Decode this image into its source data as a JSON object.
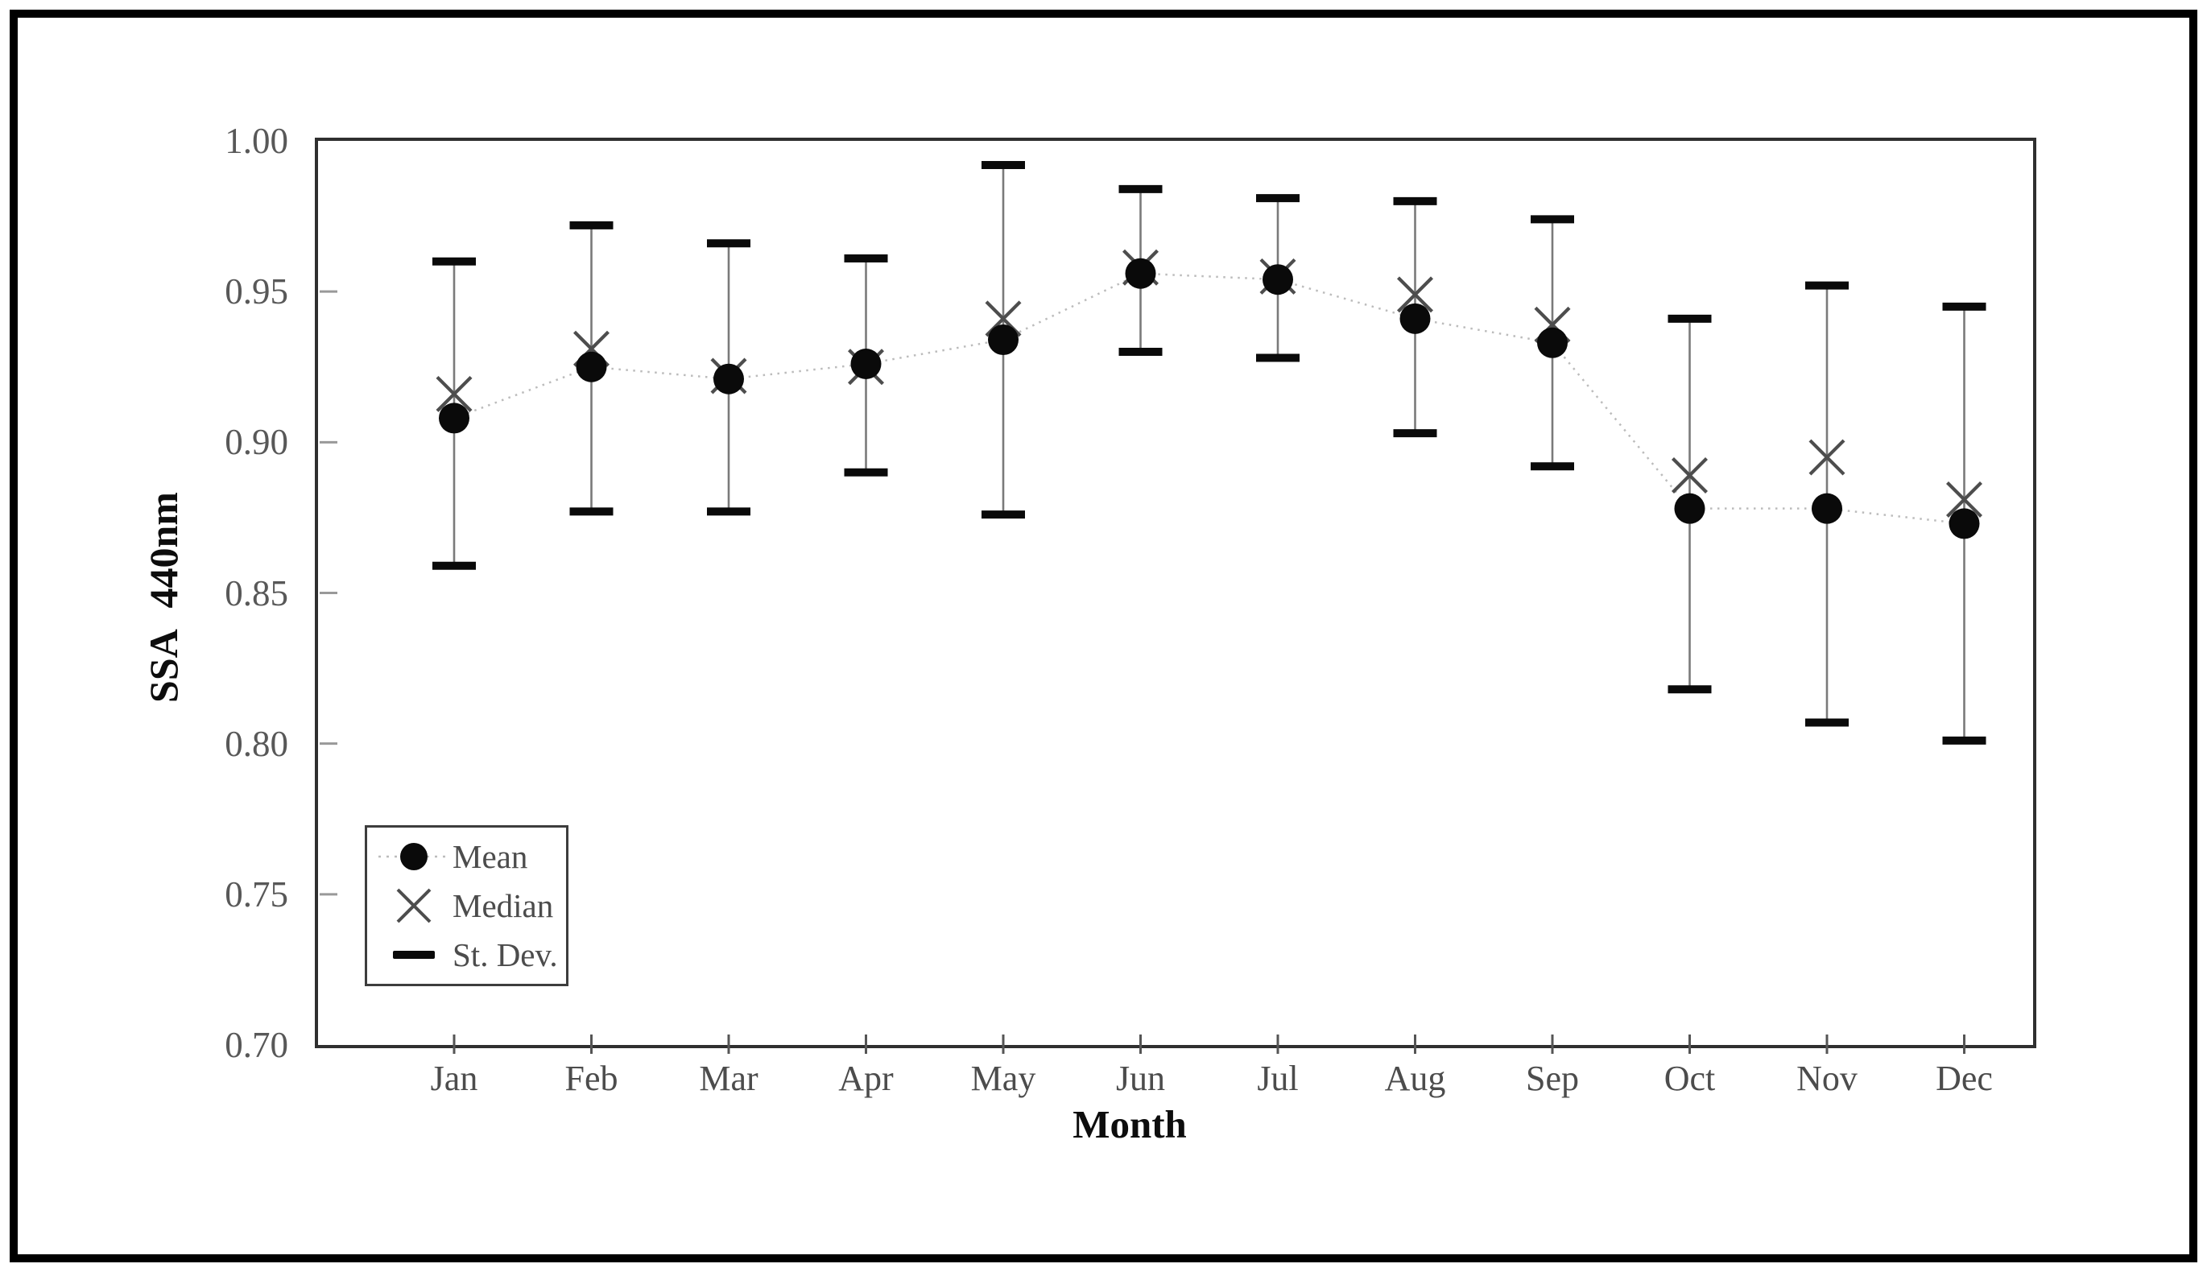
{
  "chart_data": {
    "type": "line",
    "title": "",
    "xlabel": "Month",
    "ylabel": "SSA 440nm",
    "categories": [
      "Jan",
      "Feb",
      "Mar",
      "Apr",
      "May",
      "Jun",
      "Jul",
      "Aug",
      "Sep",
      "Oct",
      "Nov",
      "Dec"
    ],
    "ylim": [
      0.7,
      1.0
    ],
    "ytick_step": 0.05,
    "yticks": [
      1.0,
      0.95,
      0.9,
      0.85,
      0.8,
      0.75,
      0.7
    ],
    "ytick_labels": [
      "1.00",
      "0.95",
      "0.90",
      "0.85",
      "0.80",
      "0.75",
      "0.70"
    ],
    "grid": false,
    "legend_position": "lower-left",
    "series": [
      {
        "name": "Mean",
        "marker": "filled-circle",
        "line": "dotted",
        "values": [
          0.908,
          0.925,
          0.921,
          0.926,
          0.934,
          0.956,
          0.954,
          0.941,
          0.933,
          0.878,
          0.878,
          0.873
        ]
      },
      {
        "name": "Median",
        "marker": "x",
        "line": "none",
        "values": [
          0.916,
          0.931,
          0.922,
          0.925,
          0.941,
          0.958,
          0.955,
          0.949,
          0.939,
          0.889,
          0.895,
          0.881
        ]
      },
      {
        "name": "St. Dev.",
        "marker": "cap-dash",
        "line": "error-bar",
        "upper": [
          0.96,
          0.972,
          0.966,
          0.961,
          0.992,
          0.984,
          0.981,
          0.98,
          0.974,
          0.941,
          0.952,
          0.945
        ],
        "lower": [
          0.859,
          0.877,
          0.877,
          0.89,
          0.876,
          0.93,
          0.928,
          0.903,
          0.892,
          0.818,
          0.807,
          0.801
        ]
      }
    ]
  },
  "axes": {
    "y_title": "SSA 440nm",
    "x_title": "Month"
  },
  "legend": {
    "items": [
      {
        "label": "Mean",
        "symbol": "mean-dot-dashed-line"
      },
      {
        "label": "Median",
        "symbol": "x-mark"
      },
      {
        "label": "St. Dev.",
        "symbol": "cap-dash"
      }
    ]
  },
  "colors": {
    "background": "#ffffff",
    "outer_frame": "#000000",
    "plot_border": "#2f2f2f",
    "mean_marker": "#0a0a0a",
    "median_x": "#4d4d4d",
    "error_line": "#7a7a7a",
    "error_cap": "#0a0a0a",
    "connector_dotted": "#bcbcbc",
    "y_tick_mark": "#999999",
    "x_tick_mark": "#555555",
    "tick_text": "#585858",
    "title_text": "#0d0d0d"
  }
}
